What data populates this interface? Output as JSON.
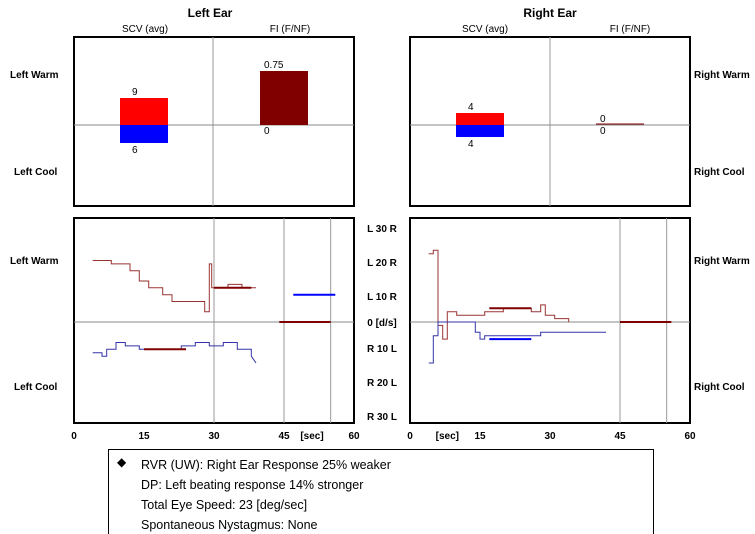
{
  "colors": {
    "warm": "#ff0000",
    "cool": "#0000ff",
    "fixation": "#800000",
    "spv_warm": "#993333",
    "spv_cool": "#3333aa",
    "axis": "#000000",
    "grid": "#999999"
  },
  "left_panel": {
    "title": "Left Ear",
    "col1": "SCV (avg)",
    "col2": "FI (F/NF)"
  },
  "right_panel": {
    "title": "Right Ear",
    "col1": "SCV (avg)",
    "col2": "FI (F/NF)"
  },
  "side_labels": {
    "left_warm": "Left Warm",
    "left_cool": "Left Cool",
    "right_warm": "Right Warm",
    "right_cool": "Right Cool"
  },
  "middle_axis": {
    "ticks": [
      "L 30 R",
      "L 20 R",
      "L 10 R",
      "0 [d/s]",
      "R 10 L",
      "R 20 L",
      "R 30 L"
    ]
  },
  "summary": {
    "bullet": "◆",
    "lines": [
      "RVR (UW): Right Ear Response 25% weaker",
      "DP: Left beating response 14% stronger",
      "Total Eye Speed: 23 [deg/sec]",
      "Spontaneous Nystagmus: None"
    ]
  },
  "chart_data": [
    {
      "type": "bar",
      "title": "Left Ear",
      "categories": [
        "SCV (avg)",
        "FI (F/NF)"
      ],
      "series": [
        {
          "name": "Left Warm",
          "values": [
            9,
            0.75
          ]
        },
        {
          "name": "Left Cool",
          "values": [
            6,
            0
          ]
        }
      ],
      "value_labels": {
        "warm": [
          "9",
          "0.75"
        ],
        "cool": [
          "6",
          "0"
        ]
      }
    },
    {
      "type": "bar",
      "title": "Right Ear",
      "categories": [
        "SCV (avg)",
        "FI (F/NF)"
      ],
      "series": [
        {
          "name": "Right Warm",
          "values": [
            4,
            0
          ]
        },
        {
          "name": "Right Cool",
          "values": [
            4,
            0
          ]
        }
      ],
      "value_labels": {
        "warm": [
          "4",
          "0"
        ],
        "cool": [
          "4",
          "0"
        ]
      }
    },
    {
      "type": "line",
      "title": "",
      "xlabel": "[sec]",
      "x_ticks": [
        "0",
        "15",
        "30",
        "45",
        "[sec]",
        "60"
      ],
      "xlim": [
        0,
        60
      ],
      "ylim": [
        -30,
        30
      ],
      "vertical_markers": [
        30,
        45,
        55
      ],
      "series": [
        {
          "name": "Left Warm",
          "points": [
            [
              4,
              18
            ],
            [
              8,
              18
            ],
            [
              8,
              17
            ],
            [
              12,
              17
            ],
            [
              12,
              15
            ],
            [
              14,
              15
            ],
            [
              14,
              12
            ],
            [
              16,
              12
            ],
            [
              16,
              10
            ],
            [
              19,
              10
            ],
            [
              19,
              8
            ],
            [
              21,
              8
            ],
            [
              21,
              6
            ],
            [
              25,
              6
            ],
            [
              25,
              6
            ],
            [
              28,
              6
            ],
            [
              28,
              3
            ],
            [
              29,
              3
            ],
            [
              29,
              17
            ],
            [
              29.5,
              17
            ],
            [
              29.5,
              10
            ],
            [
              33,
              10
            ],
            [
              33,
              11
            ],
            [
              36,
              11
            ],
            [
              36,
              10
            ],
            [
              39,
              10
            ]
          ]
        },
        {
          "name": "Left Cool",
          "points": [
            [
              4,
              -9
            ],
            [
              6,
              -9
            ],
            [
              6,
              -10
            ],
            [
              7,
              -10
            ],
            [
              7,
              -8
            ],
            [
              9,
              -8
            ],
            [
              9,
              -6
            ],
            [
              11,
              -6
            ],
            [
              11,
              -7
            ],
            [
              14,
              -7
            ],
            [
              14,
              -8
            ],
            [
              17,
              -8
            ],
            [
              17,
              -8
            ],
            [
              23,
              -8
            ],
            [
              23,
              -7
            ],
            [
              26,
              -7
            ],
            [
              26,
              -6
            ],
            [
              29,
              -6
            ],
            [
              29,
              -7
            ],
            [
              32,
              -7
            ],
            [
              32,
              -6
            ],
            [
              35,
              -6
            ],
            [
              35,
              -8
            ],
            [
              38,
              -8
            ],
            [
              38,
              -10
            ],
            [
              39,
              -12
            ]
          ]
        },
        {
          "name": "Left Warm SPV",
          "points": [
            [
              15,
              -8
            ],
            [
              24,
              -8
            ]
          ]
        },
        {
          "name": "Left Warm SPV 2",
          "points": [
            [
              30,
              10
            ],
            [
              38,
              10
            ]
          ]
        },
        {
          "name": "Left Warm Fixation",
          "points": [
            [
              47,
              8
            ],
            [
              56,
              8
            ]
          ]
        },
        {
          "name": "Left Cool Fixation",
          "points": [
            [
              44,
              0
            ],
            [
              55,
              0
            ]
          ]
        }
      ]
    },
    {
      "type": "line",
      "title": "",
      "xlabel": "[sec]",
      "x_ticks": [
        "0",
        "[sec]",
        "15",
        "30",
        "45",
        "60"
      ],
      "xlim": [
        0,
        60
      ],
      "ylim": [
        -30,
        30
      ],
      "vertical_markers": [
        45,
        55
      ],
      "series": [
        {
          "name": "Right Warm",
          "points": [
            [
              4,
              20
            ],
            [
              5,
              20
            ],
            [
              5,
              21
            ],
            [
              6,
              21
            ],
            [
              6,
              -1
            ],
            [
              7,
              -1
            ],
            [
              7,
              -5
            ],
            [
              8,
              -5
            ],
            [
              8,
              3
            ],
            [
              10,
              3
            ],
            [
              10,
              2
            ],
            [
              16,
              2
            ],
            [
              16,
              3
            ],
            [
              20,
              3
            ],
            [
              20,
              4
            ],
            [
              26,
              4
            ],
            [
              26,
              3
            ],
            [
              28,
              3
            ],
            [
              28,
              5
            ],
            [
              29,
              5
            ],
            [
              29,
              2
            ],
            [
              31,
              2
            ],
            [
              31,
              1
            ],
            [
              34,
              1
            ],
            [
              34,
              0
            ]
          ]
        },
        {
          "name": "Right Cool",
          "points": [
            [
              4,
              -12
            ],
            [
              5,
              -12
            ],
            [
              5,
              -4
            ],
            [
              6,
              -4
            ],
            [
              6,
              0
            ],
            [
              14,
              0
            ],
            [
              14,
              -3
            ],
            [
              15,
              -3
            ],
            [
              15,
              -5
            ],
            [
              16,
              -5
            ],
            [
              16,
              -4
            ],
            [
              28,
              -4
            ],
            [
              28,
              -3
            ],
            [
              34,
              -3
            ],
            [
              34,
              -3
            ],
            [
              42,
              -3
            ]
          ]
        },
        {
          "name": "Right Warm SPV",
          "points": [
            [
              17,
              4
            ],
            [
              26,
              4
            ]
          ]
        },
        {
          "name": "Right Cool SPV",
          "points": [
            [
              17,
              -5
            ],
            [
              26,
              -5
            ]
          ]
        },
        {
          "name": "Right Fixation",
          "points": [
            [
              45,
              0
            ],
            [
              56,
              0
            ]
          ]
        }
      ]
    }
  ]
}
